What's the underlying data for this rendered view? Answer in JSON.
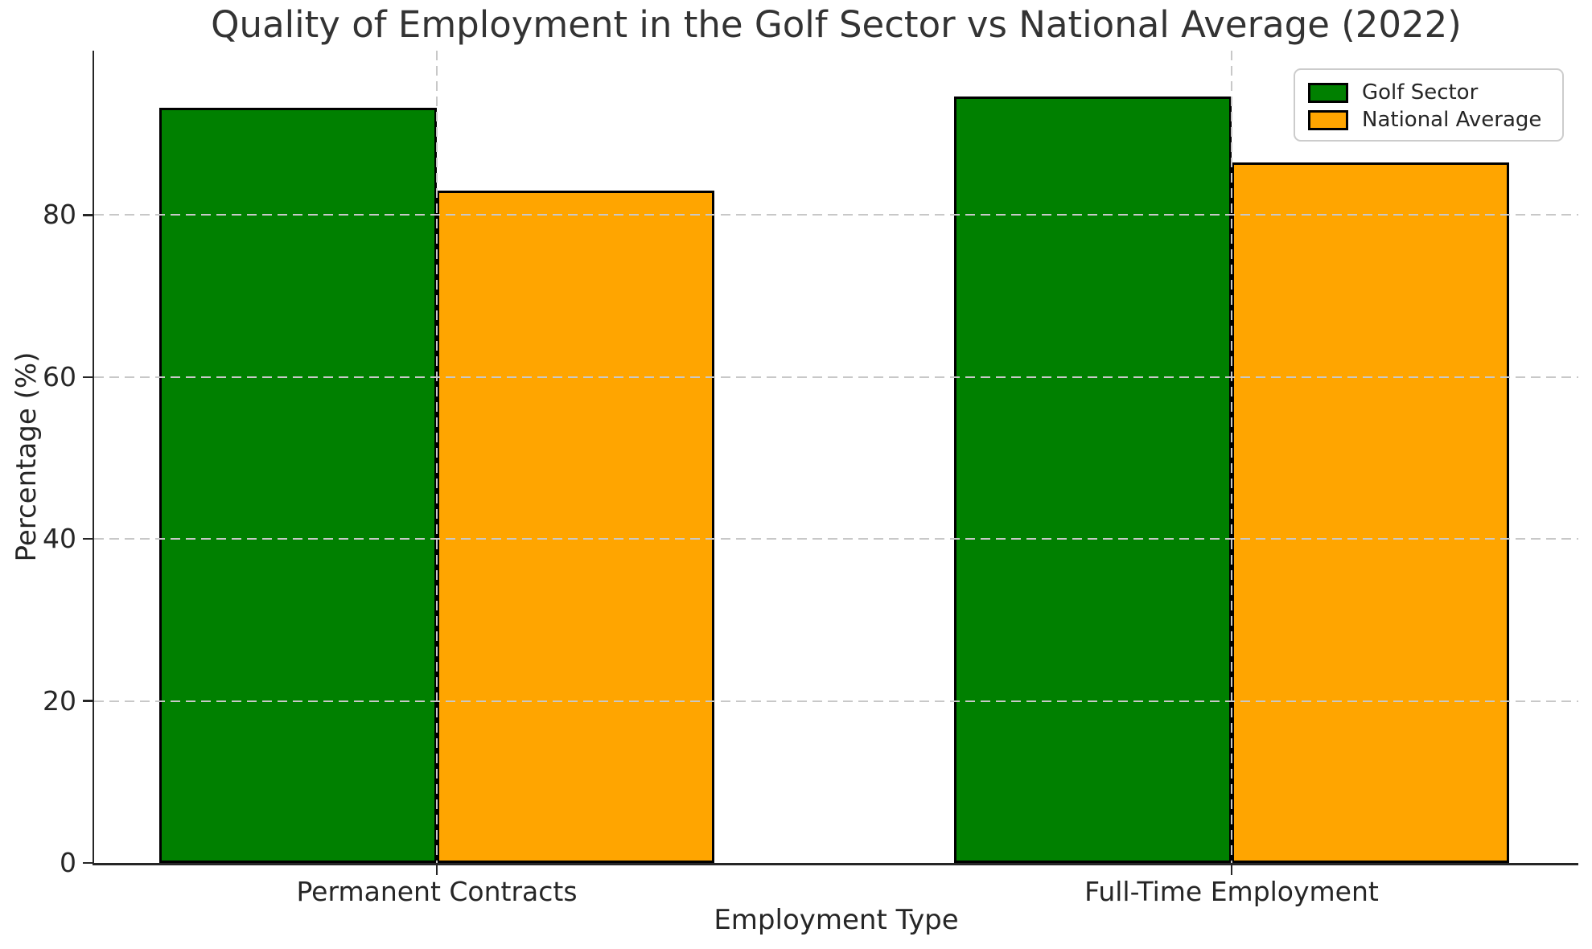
{
  "chart_data": {
    "type": "bar",
    "title": "Quality of Employment in the Golf Sector vs National Average (2022)",
    "xlabel": "Employment Type",
    "ylabel": "Percentage (%)",
    "categories": [
      "Permanent Contracts",
      "Full-Time Employment"
    ],
    "series": [
      {
        "name": "Golf Sector",
        "color": "#008000",
        "values": [
          93.3,
          94.6
        ]
      },
      {
        "name": "National Average",
        "color": "#FFA500",
        "values": [
          83.0,
          86.5
        ]
      }
    ],
    "yticks": [
      0,
      20,
      40,
      60,
      80
    ],
    "ylim": [
      0,
      100.3
    ],
    "grid": true,
    "grid_style": "dashed",
    "grid_color": "#c8c8c8",
    "bar_edge_color": "#000000",
    "background_color": "#ffffff",
    "text_color": "#262626",
    "legend_position": "upper right",
    "legend_entries": [
      "Golf Sector",
      "National Average"
    ]
  }
}
